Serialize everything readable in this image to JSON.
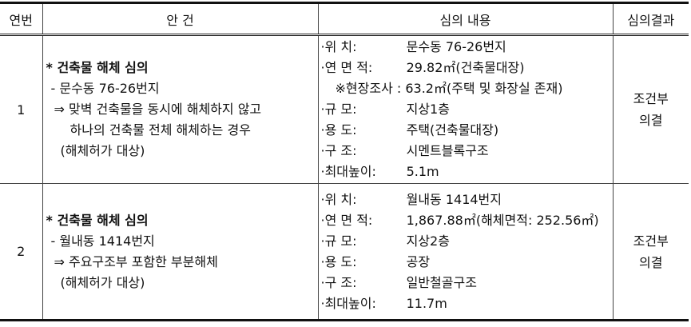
{
  "headers": [
    "연번",
    "안 건",
    "심의 내용",
    "심의결과"
  ],
  "rows": [
    {
      "no": "1",
      "agenda": {
        "title": "* 건축물 해체 심의",
        "address": "- 문수동 76-26번지",
        "desc1": "⇒ 맞벽 건축물을 동시에 해체하지 않고",
        "desc2": "하나의 건축물 전체 해체하는 경우",
        "desc3": "(해체허가 대상)"
      },
      "content": [
        {
          "label": "·위      치:",
          "value": "문수동 76-26번지"
        },
        {
          "label": "·연  면  적:",
          "value": "29.82㎡(건축물대장)"
        },
        {
          "note": "※현장조사 : 63.2㎡(주택 및 화장실 존재)"
        },
        {
          "label": "·규      모:",
          "value": "지상1층"
        },
        {
          "label": "·용      도:",
          "value": "주택(건축물대장)"
        },
        {
          "label": "·구      조:",
          "value": "시멘트블록구조"
        },
        {
          "label": "·최대높이:",
          "value": "5.1m"
        }
      ],
      "result": [
        "조건부",
        "의결"
      ]
    },
    {
      "no": "2",
      "agenda": {
        "title": "* 건축물 해체 심의",
        "address": "- 월내동 1414번지",
        "desc1": "⇒ 주요구조부 포함한 부분해체",
        "desc2": "(해체허가 대상)"
      },
      "content": [
        {
          "label": "·위      치:",
          "value": "월내동 1414번지"
        },
        {
          "label": "·연  면  적:",
          "value": "1,867.88㎡(해체면적: 252.56㎡)"
        },
        {
          "label": "·규      모:",
          "value": "지상2층"
        },
        {
          "label": "·용      도:",
          "value": "공장"
        },
        {
          "label": "·구      조:",
          "value": "일반철골구조"
        },
        {
          "label": "·최대높이:",
          "value": "11.7m"
        }
      ],
      "result": [
        "조건부",
        "의결"
      ]
    }
  ]
}
